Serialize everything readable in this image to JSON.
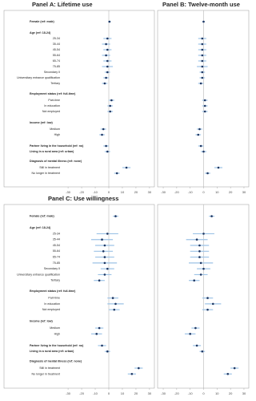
{
  "chart_data": [
    {
      "type": "forest",
      "title": "Panel A: Lifetime use",
      "categories": [
        "Female (ref: male)",
        "Age (ref: 18-24)",
        "25-34",
        "35-44",
        "45-54",
        "55-64",
        "65-74",
        "75-85",
        "Secondary II",
        "Universitary entrance qualification",
        "Tertiary",
        "Employment status (ref: full-time)",
        "Part-time",
        "In education",
        "Not employed",
        "Income (ref: low)",
        "Medium",
        "High",
        "Partner living in the household (ref: no)",
        "Living in a rural area (ref: urban)",
        "Diagnosis of mental illness (ref: none)",
        "Still in treatment",
        "No longer in treatment"
      ],
      "values": [
        0.5,
        null,
        -1,
        -2,
        -1,
        -2,
        -1,
        -1,
        -1,
        -2,
        -3,
        null,
        2,
        1,
        1,
        null,
        -4,
        -5,
        -2,
        -1,
        null,
        13,
        6
      ],
      "errors": [
        1,
        null,
        3,
        3,
        3,
        3,
        3,
        4,
        2,
        2,
        2,
        null,
        2,
        2,
        2,
        null,
        2,
        2,
        2,
        2,
        null,
        3,
        2
      ],
      "xlim": [
        -33,
        33
      ],
      "xticks": [
        -30,
        -20,
        -10,
        0,
        10,
        20,
        30
      ],
      "color": "#1f3864",
      "ci_color": "#9dc3e6"
    },
    {
      "type": "forest",
      "title": "Panel B: Twelve-month use",
      "values": [
        0,
        null,
        -1,
        -1,
        -1,
        -1,
        -1,
        -1,
        -1,
        -1,
        -2,
        null,
        1,
        1,
        1,
        null,
        -3,
        -4,
        -2,
        0,
        null,
        11,
        3
      ],
      "errors": [
        1,
        null,
        3,
        3,
        3,
        3,
        3,
        4,
        2,
        2,
        2,
        null,
        2,
        2,
        2,
        null,
        2,
        2,
        2,
        2,
        null,
        3,
        2
      ],
      "xlim": [
        -33,
        33
      ],
      "xticks": [
        -30,
        -20,
        -10,
        0,
        10,
        20,
        30
      ],
      "color": "#1f3864",
      "ci_color": "#9dc3e6"
    },
    {
      "type": "forest",
      "title": "Panel C: Use willingness",
      "categories": [
        "Female (ref: male)",
        "Age (ref: 18-24)",
        "25-34",
        "35-44",
        "45-54",
        "55-64",
        "65-74",
        "75-85",
        "Secondary II",
        "Universitary entrance qualification",
        "Tertiary",
        "Employment status (ref: full-time)",
        "Part-time",
        "In education",
        "Not employed",
        "Income (ref: low)",
        "Medium",
        "High",
        "Partner living in the household (ref: no)",
        "Living in a rural area (ref: urban)",
        "Diagnosis of mental illness (ref: none)",
        "Still in treatment",
        "No longer in treatment"
      ],
      "values": [
        5,
        null,
        -1,
        -5,
        -3,
        -4,
        -3,
        -3,
        -1,
        -3,
        -7,
        null,
        3,
        5,
        4,
        null,
        -7,
        -9,
        -5,
        -1,
        null,
        22,
        17
      ],
      "errors": [
        2,
        null,
        8,
        8,
        7,
        7,
        7,
        9,
        5,
        5,
        4,
        null,
        4,
        6,
        4,
        null,
        3,
        4,
        3,
        2,
        null,
        3,
        3
      ],
      "xlim": [
        -33,
        33
      ],
      "xticks": [
        -30,
        -20,
        -10,
        0,
        10,
        20,
        30
      ],
      "color": "#1f3864",
      "ci_color": "#9dc3e6"
    },
    {
      "type": "forest",
      "values": [
        6,
        null,
        0,
        -5,
        -3,
        -3,
        -3,
        -2,
        0,
        -2,
        -7,
        null,
        3,
        7,
        3,
        null,
        -6,
        -10,
        -5,
        -1,
        null,
        23,
        18
      ],
      "errors": [
        2,
        null,
        8,
        8,
        7,
        7,
        7,
        9,
        5,
        5,
        4,
        null,
        4,
        6,
        4,
        null,
        3,
        4,
        3,
        2,
        null,
        3,
        3
      ],
      "xlim": [
        -33,
        33
      ],
      "xticks": [
        -30,
        -20,
        -10,
        0,
        10,
        20,
        30
      ],
      "color": "#1f3864",
      "ci_color": "#9dc3e6"
    }
  ]
}
